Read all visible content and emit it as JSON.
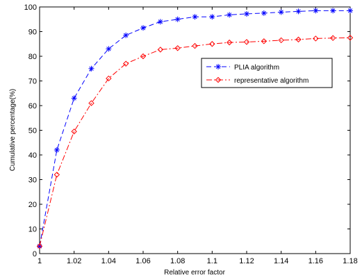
{
  "chart_data": {
    "type": "line",
    "xlabel": "Relative error factor",
    "ylabel": "Cumulative percentage(%)",
    "xlim": [
      1,
      1.18
    ],
    "ylim": [
      0,
      100
    ],
    "xticks": [
      1,
      1.02,
      1.04,
      1.06,
      1.08,
      1.1,
      1.12,
      1.14,
      1.16,
      1.18
    ],
    "xtick_labels": [
      "1",
      "1.02",
      "1.04",
      "1.06",
      "1.08",
      "1.1",
      "1.12",
      "1.14",
      "1.16",
      "1.18"
    ],
    "yticks": [
      0,
      10,
      20,
      30,
      40,
      50,
      60,
      70,
      80,
      90,
      100
    ],
    "ytick_labels": [
      "0",
      "10",
      "20",
      "30",
      "40",
      "50",
      "60",
      "70",
      "80",
      "90",
      "100"
    ],
    "grid": false,
    "legend_position": "upper-right-inset",
    "x": [
      1.0,
      1.01,
      1.02,
      1.03,
      1.04,
      1.05,
      1.06,
      1.07,
      1.08,
      1.09,
      1.1,
      1.11,
      1.12,
      1.13,
      1.14,
      1.15,
      1.16,
      1.17,
      1.18
    ],
    "series": [
      {
        "name": "PLIA algorithm",
        "color": "#0000ff",
        "line_style": "dashed",
        "marker": "asterisk",
        "values": [
          3,
          42,
          63,
          75,
          83,
          88.5,
          91.5,
          94,
          95,
          96,
          96,
          96.8,
          97.2,
          97.5,
          97.9,
          98.2,
          98.5,
          98.5,
          98.5
        ]
      },
      {
        "name": "representative algorithm",
        "color": "#ff0000",
        "line_style": "dashdot",
        "marker": "diamond",
        "values": [
          3,
          32,
          49.5,
          61,
          71,
          77,
          80,
          82.7,
          83.3,
          84.2,
          85,
          85.6,
          85.8,
          86.1,
          86.5,
          86.8,
          87.2,
          87.4,
          87.5
        ]
      }
    ]
  }
}
